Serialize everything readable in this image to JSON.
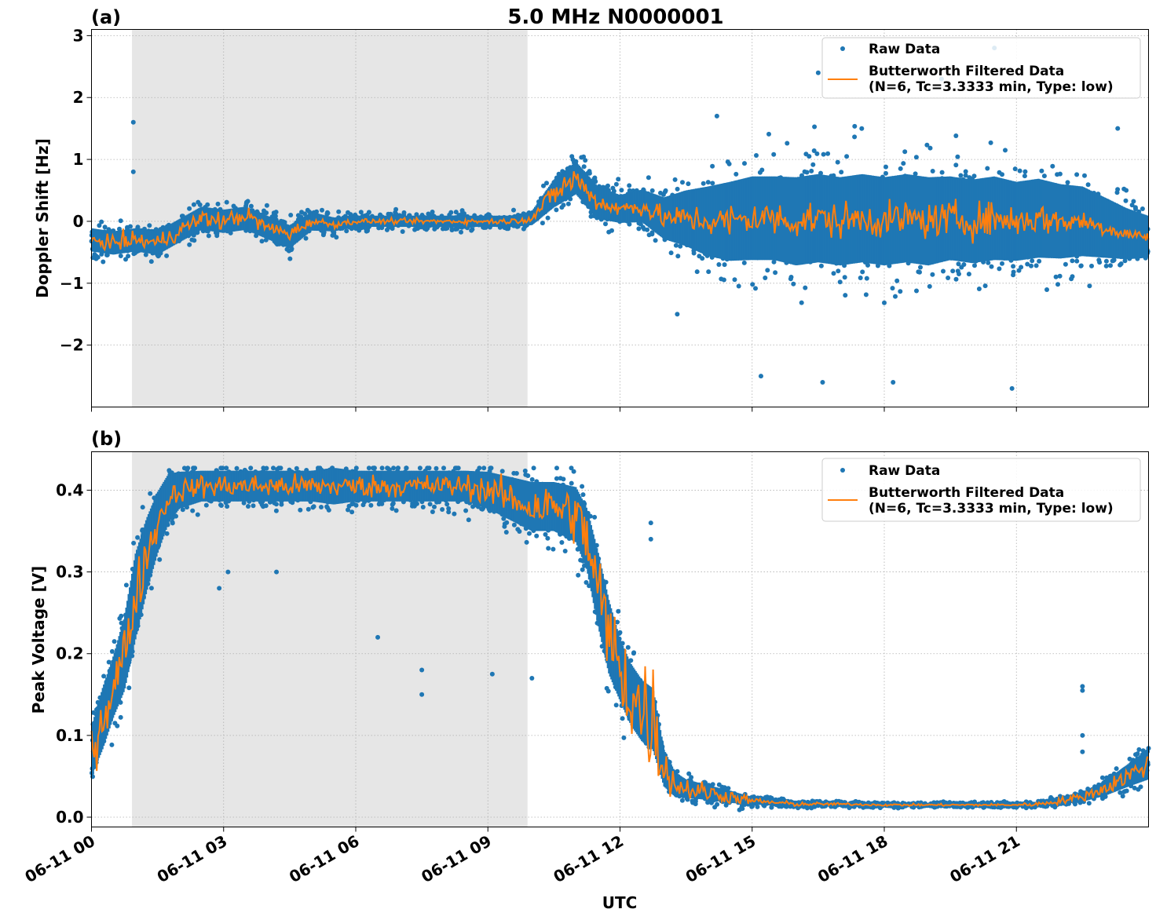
{
  "figure": {
    "title": "5.0 MHz N0000001",
    "xlabel": "UTC"
  },
  "colors": {
    "raw": "#1f77b4",
    "filtered": "#ff7f0e",
    "shade": "#e6e6e6",
    "grid": "#b0b0b0"
  },
  "chart_data": [
    {
      "type": "scatter",
      "panel_label": "(a)",
      "title": "5.0 MHz N0000001",
      "xlabel": "",
      "ylabel": "Doppler Shift [Hz]",
      "xlim": [
        0,
        24
      ],
      "ylim": [
        -3,
        3.1
      ],
      "x_unit": "hours since 06-11 00 UTC",
      "x_tick_labels": [
        "06-11 00",
        "06-11 03",
        "06-11 06",
        "06-11 09",
        "06-11 12",
        "06-11 15",
        "06-11 18",
        "06-11 21"
      ],
      "x_ticks": [
        0,
        3,
        6,
        9,
        12,
        15,
        18,
        21
      ],
      "y_ticks": [
        -2,
        -1,
        0,
        1,
        2,
        3
      ],
      "y_tick_labels": [
        "−2",
        "−1",
        "0",
        "1",
        "2",
        "3"
      ],
      "grid": true,
      "shaded_interval": [
        0.92,
        9.9
      ],
      "legend_position": "top-right",
      "series": [
        {
          "name": "Raw Data",
          "kind": "scatter",
          "x": [
            0,
            0.5,
            1,
            1.5,
            2,
            2.5,
            3,
            3.5,
            4,
            4.5,
            5,
            5.5,
            6,
            6.5,
            7,
            7.5,
            8,
            8.5,
            9,
            9.5,
            10,
            10.5,
            11,
            11.5,
            12,
            12.5,
            13,
            13.5,
            14,
            14.5,
            15,
            15.5,
            16,
            16.5,
            17,
            17.5,
            18,
            18.5,
            19,
            19.5,
            20,
            20.5,
            21,
            21.5,
            22,
            22.5,
            23,
            23.5,
            24
          ],
          "y": [
            -0.3,
            -0.35,
            -0.3,
            -0.35,
            -0.15,
            0.05,
            0.0,
            0.05,
            -0.1,
            -0.25,
            0.0,
            -0.05,
            0.0,
            0.0,
            0.0,
            0.0,
            0.0,
            0.0,
            0.0,
            0.0,
            0.05,
            0.45,
            0.7,
            0.3,
            0.2,
            0.25,
            0.05,
            0.05,
            0.0,
            0.0,
            0.05,
            0.05,
            0.0,
            0.05,
            0.0,
            0.05,
            0.0,
            0.05,
            0.0,
            0.05,
            0.0,
            0.05,
            0.0,
            0.05,
            0.0,
            0.0,
            -0.1,
            -0.2,
            -0.25
          ],
          "spread": [
            0.25,
            0.25,
            0.25,
            0.25,
            0.25,
            0.25,
            0.25,
            0.25,
            0.25,
            0.25,
            0.2,
            0.15,
            0.12,
            0.12,
            0.12,
            0.12,
            0.12,
            0.12,
            0.12,
            0.12,
            0.15,
            0.3,
            0.35,
            0.35,
            0.3,
            0.35,
            0.45,
            0.6,
            0.75,
            0.85,
            0.9,
            0.9,
            0.95,
            0.95,
            0.95,
            0.95,
            0.95,
            0.95,
            0.95,
            0.9,
            0.9,
            0.9,
            0.85,
            0.85,
            0.8,
            0.75,
            0.65,
            0.55,
            0.45
          ]
        },
        {
          "name": "Butterworth Filtered Data\n(N=6, Tc=3.3333 min, Type: low)",
          "kind": "line",
          "x": [
            0,
            0.5,
            1,
            1.5,
            2,
            2.5,
            3,
            3.5,
            4,
            4.5,
            5,
            5.5,
            6,
            6.5,
            7,
            7.5,
            8,
            8.5,
            9,
            9.5,
            10,
            10.5,
            11,
            11.5,
            12,
            12.5,
            13,
            13.5,
            14,
            14.5,
            15,
            15.5,
            16,
            16.5,
            17,
            17.5,
            18,
            18.5,
            19,
            19.5,
            20,
            20.5,
            21,
            21.5,
            22,
            22.5,
            23,
            23.5,
            24
          ],
          "y": [
            -0.3,
            -0.35,
            -0.3,
            -0.35,
            -0.15,
            0.05,
            0.0,
            0.1,
            -0.1,
            -0.2,
            0.0,
            -0.05,
            0.0,
            0.0,
            0.0,
            0.0,
            0.0,
            0.0,
            0.0,
            0.0,
            0.05,
            0.45,
            0.7,
            0.3,
            0.2,
            0.25,
            0.05,
            0.05,
            0.0,
            0.0,
            0.05,
            0.05,
            0.0,
            0.05,
            0.0,
            0.05,
            0.0,
            0.05,
            0.0,
            0.05,
            0.0,
            0.05,
            0.0,
            0.05,
            0.0,
            0.0,
            -0.1,
            -0.2,
            -0.25
          ],
          "noise": [
            0.05,
            0.1,
            0.1,
            0.1,
            0.1,
            0.1,
            0.1,
            0.1,
            0.08,
            0.08,
            0.05,
            0.04,
            0.03,
            0.03,
            0.03,
            0.03,
            0.03,
            0.03,
            0.03,
            0.03,
            0.05,
            0.15,
            0.15,
            0.1,
            0.1,
            0.12,
            0.12,
            0.15,
            0.18,
            0.2,
            0.2,
            0.2,
            0.2,
            0.2,
            0.2,
            0.2,
            0.2,
            0.2,
            0.2,
            0.2,
            0.2,
            0.2,
            0.18,
            0.18,
            0.15,
            0.12,
            0.1,
            0.08,
            0.06
          ]
        }
      ],
      "outliers": [
        [
          0.95,
          1.6
        ],
        [
          0.95,
          0.8
        ],
        [
          14.2,
          1.7
        ],
        [
          16.5,
          2.4
        ],
        [
          20.5,
          2.8
        ],
        [
          19.3,
          2.3
        ],
        [
          23.3,
          1.5
        ],
        [
          18.2,
          -2.6
        ],
        [
          20.9,
          -2.7
        ],
        [
          16.6,
          -2.6
        ],
        [
          15.2,
          -2.5
        ],
        [
          13.3,
          -1.5
        ]
      ]
    },
    {
      "type": "scatter",
      "panel_label": "(b)",
      "title": "",
      "xlabel": "UTC",
      "ylabel": "Peak Voltage [V]",
      "xlim": [
        0,
        24
      ],
      "ylim": [
        -0.012,
        0.447
      ],
      "x_unit": "hours since 06-11 00 UTC",
      "x_tick_labels": [
        "06-11 00",
        "06-11 03",
        "06-11 06",
        "06-11 09",
        "06-11 12",
        "06-11 15",
        "06-11 18",
        "06-11 21"
      ],
      "x_ticks": [
        0,
        3,
        6,
        9,
        12,
        15,
        18,
        21
      ],
      "y_ticks": [
        0.0,
        0.1,
        0.2,
        0.3,
        0.4
      ],
      "y_tick_labels": [
        "0.0",
        "0.1",
        "0.2",
        "0.3",
        "0.4"
      ],
      "grid": true,
      "shaded_interval": [
        0.92,
        9.9
      ],
      "legend_position": "top-right",
      "series": [
        {
          "name": "Raw Data",
          "kind": "scatter",
          "x": [
            0,
            0.25,
            0.5,
            0.75,
            1,
            1.25,
            1.5,
            1.75,
            2,
            2.5,
            3,
            3.5,
            4,
            4.5,
            5,
            5.5,
            6,
            6.5,
            7,
            7.5,
            8,
            8.5,
            9,
            9.5,
            10,
            10.5,
            11,
            11.25,
            11.5,
            11.75,
            12,
            12.25,
            12.5,
            12.75,
            13,
            13.25,
            13.5,
            14,
            14.5,
            15,
            15.5,
            16,
            17,
            18,
            19,
            20,
            21,
            21.5,
            22,
            22.5,
            23,
            23.5,
            24
          ],
          "y": [
            0.08,
            0.12,
            0.16,
            0.2,
            0.27,
            0.32,
            0.36,
            0.39,
            0.4,
            0.405,
            0.405,
            0.405,
            0.405,
            0.405,
            0.405,
            0.405,
            0.405,
            0.405,
            0.405,
            0.405,
            0.405,
            0.405,
            0.4,
            0.39,
            0.38,
            0.38,
            0.37,
            0.34,
            0.28,
            0.22,
            0.18,
            0.15,
            0.13,
            0.12,
            0.06,
            0.04,
            0.035,
            0.03,
            0.025,
            0.02,
            0.018,
            0.016,
            0.016,
            0.015,
            0.015,
            0.015,
            0.015,
            0.016,
            0.02,
            0.025,
            0.035,
            0.05,
            0.065
          ],
          "spread": [
            0.04,
            0.05,
            0.05,
            0.06,
            0.07,
            0.06,
            0.05,
            0.04,
            0.03,
            0.025,
            0.025,
            0.025,
            0.025,
            0.025,
            0.025,
            0.03,
            0.025,
            0.025,
            0.025,
            0.025,
            0.025,
            0.025,
            0.03,
            0.035,
            0.04,
            0.04,
            0.045,
            0.05,
            0.06,
            0.06,
            0.05,
            0.05,
            0.05,
            0.05,
            0.03,
            0.02,
            0.015,
            0.012,
            0.01,
            0.006,
            0.005,
            0.004,
            0.003,
            0.003,
            0.003,
            0.003,
            0.003,
            0.004,
            0.006,
            0.008,
            0.012,
            0.018,
            0.025
          ]
        },
        {
          "name": "Butterworth Filtered Data\n(N=6, Tc=3.3333 min, Type: low)",
          "kind": "line",
          "x": [
            0,
            0.25,
            0.5,
            0.75,
            1,
            1.25,
            1.5,
            1.75,
            2,
            2.5,
            3,
            3.5,
            4,
            4.5,
            5,
            5.5,
            6,
            6.5,
            7,
            7.5,
            8,
            8.5,
            9,
            9.5,
            10,
            10.5,
            11,
            11.25,
            11.5,
            11.75,
            12,
            12.25,
            12.5,
            12.75,
            13,
            13.25,
            13.5,
            14,
            14.5,
            15,
            15.5,
            16,
            17,
            18,
            19,
            20,
            21,
            21.5,
            22,
            22.5,
            23,
            23.5,
            24
          ],
          "y": [
            0.08,
            0.12,
            0.16,
            0.2,
            0.27,
            0.32,
            0.36,
            0.39,
            0.4,
            0.405,
            0.405,
            0.405,
            0.405,
            0.405,
            0.405,
            0.405,
            0.405,
            0.405,
            0.405,
            0.405,
            0.405,
            0.405,
            0.4,
            0.39,
            0.38,
            0.38,
            0.37,
            0.34,
            0.28,
            0.22,
            0.18,
            0.15,
            0.13,
            0.12,
            0.06,
            0.04,
            0.035,
            0.03,
            0.025,
            0.02,
            0.018,
            0.016,
            0.016,
            0.015,
            0.015,
            0.015,
            0.015,
            0.016,
            0.02,
            0.025,
            0.035,
            0.05,
            0.065
          ],
          "noise": [
            0.02,
            0.025,
            0.02,
            0.025,
            0.025,
            0.02,
            0.015,
            0.01,
            0.01,
            0.01,
            0.01,
            0.01,
            0.01,
            0.01,
            0.01,
            0.01,
            0.01,
            0.01,
            0.01,
            0.01,
            0.01,
            0.01,
            0.012,
            0.015,
            0.02,
            0.02,
            0.025,
            0.03,
            0.035,
            0.04,
            0.04,
            0.045,
            0.05,
            0.05,
            0.02,
            0.012,
            0.01,
            0.008,
            0.006,
            0.003,
            0.002,
            0.002,
            0.001,
            0.001,
            0.001,
            0.001,
            0.001,
            0.002,
            0.003,
            0.004,
            0.006,
            0.008,
            0.01
          ]
        }
      ],
      "outliers": [
        [
          22.5,
          0.16
        ],
        [
          22.5,
          0.155
        ],
        [
          22.5,
          0.1
        ],
        [
          22.5,
          0.08
        ],
        [
          7.5,
          0.18
        ],
        [
          7.5,
          0.15
        ],
        [
          6.5,
          0.22
        ],
        [
          10,
          0.17
        ],
        [
          9.1,
          0.175
        ],
        [
          2.9,
          0.28
        ],
        [
          3.1,
          0.3
        ],
        [
          4.2,
          0.3
        ],
        [
          12.7,
          0.36
        ],
        [
          12.7,
          0.34
        ]
      ]
    }
  ]
}
